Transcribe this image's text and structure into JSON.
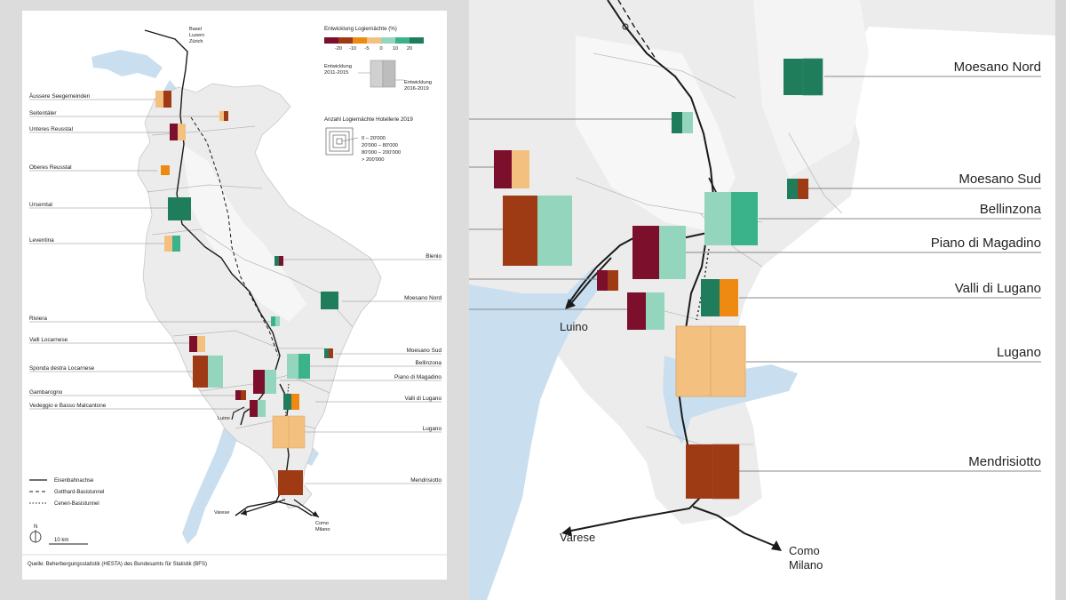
{
  "legend": {
    "colour_title": "Entwicklung Logiernächte (%)",
    "colour_steps": [
      "#7b0f2c",
      "#9e3a14",
      "#ee8a12",
      "#f4c080",
      "#94d6bd",
      "#3ab38a",
      "#1f7d5c"
    ],
    "colour_ticks": [
      "-20",
      "-10",
      "-5",
      "0",
      "10",
      "20"
    ],
    "period_left": [
      "Entwicklung",
      "2011-2015"
    ],
    "period_right": [
      "Entwicklung",
      "2016-2019"
    ],
    "size_title": "Anzahl Logiernächte Hotellerie 2019",
    "size_classes": [
      "0 – 20'000",
      "20'000 – 80'000",
      "80'000 – 200'000",
      "> 200'000"
    ]
  },
  "regions": [
    {
      "name": "Äussere Seegemeinden"
    },
    {
      "name": "Seitentäler"
    },
    {
      "name": "Unteres Reusstal"
    },
    {
      "name": "Oberes Reusstal"
    },
    {
      "name": "Urserntal"
    },
    {
      "name": "Leventina"
    },
    {
      "name": "Blenio"
    },
    {
      "name": "Moesano Nord"
    },
    {
      "name": "Riviera"
    },
    {
      "name": "Valli Locarnese"
    },
    {
      "name": "Moesano Sud"
    },
    {
      "name": "Sponda destra Locarnese"
    },
    {
      "name": "Bellinzona"
    },
    {
      "name": "Piano di Magadino"
    },
    {
      "name": "Gambarogno"
    },
    {
      "name": "Valli di Lugano"
    },
    {
      "name": "Vedeggio e Basso Malcantone"
    },
    {
      "name": "Lugano"
    },
    {
      "name": "Mendrisiotto"
    }
  ],
  "places": {
    "north": [
      "Basel",
      "Luzern",
      "Zürich"
    ],
    "luino": "Luino",
    "varese": "Varese",
    "como": [
      "Como",
      "Milano"
    ]
  },
  "line_legend": [
    "Eisenbahnachse",
    "Gotthard-Basistunnel",
    "Ceneri-Basistunnel"
  ],
  "north_label": "N",
  "scale_label": "10 km",
  "source": "Quelle: Beherbergungsstatistik (HESTA) des Bundesamts für Statistik (BFS)",
  "zoom_labels": [
    "Moesano Nord",
    "Moesano Sud",
    "Bellinzona",
    "Piano di Magadino",
    "Valli di Lugano",
    "Lugano",
    "Mendrisiotto"
  ],
  "zoom_places": {
    "luino": "Luino",
    "varese": "Varese",
    "como": [
      "Como",
      "Milano"
    ]
  }
}
